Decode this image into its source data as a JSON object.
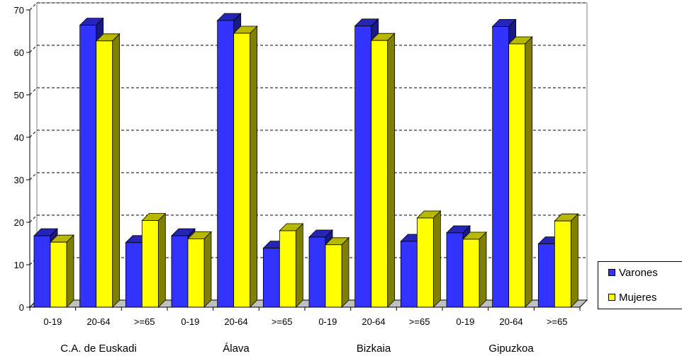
{
  "chart_data": {
    "type": "bar",
    "title": "",
    "xlabel": "",
    "ylabel": "",
    "ylim": [
      0,
      70
    ],
    "yticks": [
      0,
      10,
      20,
      30,
      40,
      50,
      60,
      70
    ],
    "grid": true,
    "legend_position": "right",
    "groups": [
      "C.A. de Euskadi",
      "Álava",
      "Bizkaia",
      "Gipuzkoa"
    ],
    "categories": [
      "0-19",
      "20-64",
      ">=65"
    ],
    "series": [
      {
        "name": "Varones",
        "color": "#3333ff",
        "values": [
          [
            16.8,
            66.4,
            15.2
          ],
          [
            16.8,
            67.5,
            13.9
          ],
          [
            16.5,
            66.2,
            15.5
          ],
          [
            17.5,
            66.1,
            14.9
          ]
        ]
      },
      {
        "name": "Mujeres",
        "color": "#ffff00",
        "values": [
          [
            15.3,
            62.7,
            20.4
          ],
          [
            16.1,
            64.5,
            18.0
          ],
          [
            14.7,
            62.8,
            21.0
          ],
          [
            16.0,
            62.0,
            20.3
          ]
        ]
      }
    ]
  }
}
